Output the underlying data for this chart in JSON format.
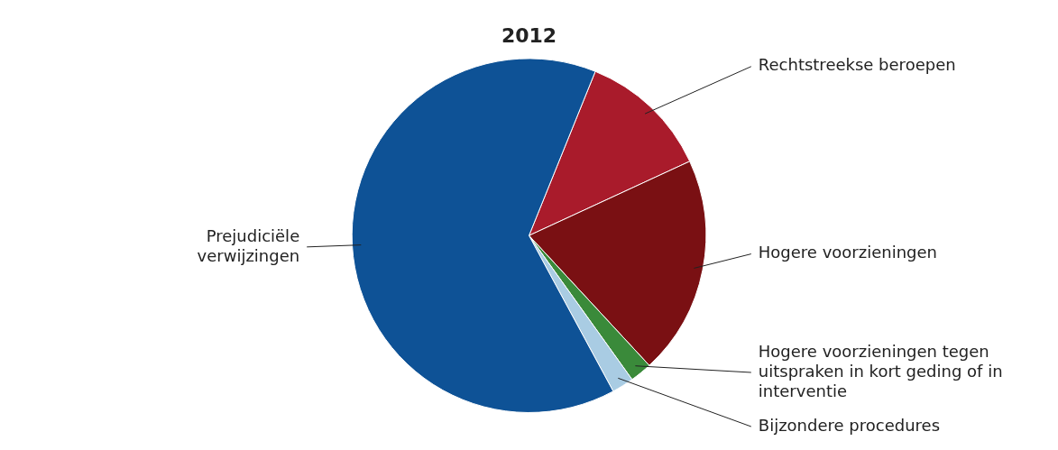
{
  "chart_data": {
    "type": "pie",
    "title": "2012",
    "categories": [
      "Rechtstreekse beroepen",
      "Hogere voorzieningen",
      "Hogere voorzieningen tegen uitspraken in kort geding of in interventie",
      "Bijzondere procedures",
      "Prejudiciële verwijzingen"
    ],
    "values": [
      12,
      20,
      2,
      2,
      64
    ],
    "colors": [
      "#a91b2b",
      "#7a1013",
      "#3a8a3a",
      "#a9cce3",
      "#0e5296"
    ],
    "legend": false
  }
}
